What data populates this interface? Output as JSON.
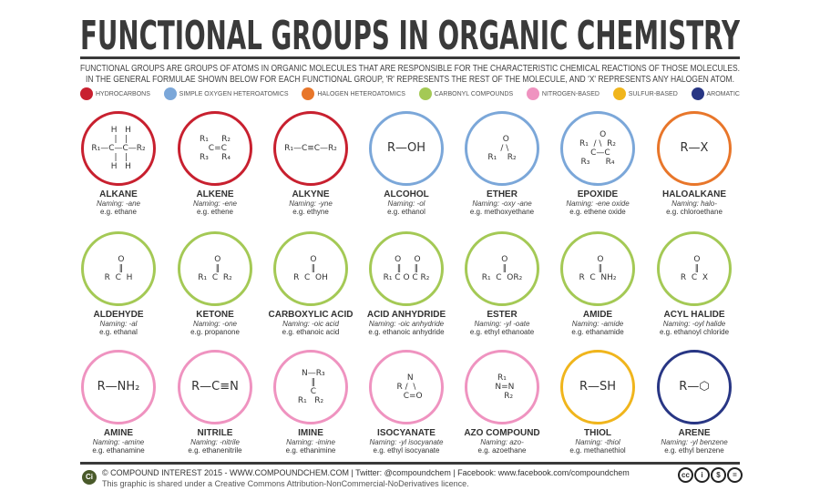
{
  "header": {
    "title": "FUNCTIONAL GROUPS IN ORGANIC CHEMISTRY",
    "subtitle_line1": "FUNCTIONAL GROUPS ARE GROUPS OF ATOMS IN ORGANIC MOLECULES THAT ARE RESPONSIBLE FOR THE CHARACTERISTIC CHEMICAL REACTIONS OF THOSE MOLECULES.",
    "subtitle_line2": "IN THE GENERAL FORMULAE SHOWN BELOW FOR EACH FUNCTIONAL GROUP, 'R' REPRESENTS THE REST OF THE MOLECULE, AND 'X' REPRESENTS ANY HALOGEN ATOM."
  },
  "legend": [
    {
      "label": "HYDROCARBONS",
      "color": "#c8202f"
    },
    {
      "label": "SIMPLE OXYGEN HETEROATOMICS",
      "color": "#7ba7d9"
    },
    {
      "label": "HALOGEN HETEROATOMICS",
      "color": "#e8762a"
    },
    {
      "label": "CARBONYL COMPOUNDS",
      "color": "#a4c955"
    },
    {
      "label": "NITROGEN-BASED",
      "color": "#ef93c0"
    },
    {
      "label": "SULFUR-BASED",
      "color": "#f0b51c"
    },
    {
      "label": "AROMATIC",
      "color": "#283684"
    }
  ],
  "groups": [
    {
      "name": "ALKANE",
      "naming": "Naming: -ane",
      "example": "e.g. ethane",
      "category": 0,
      "formula": "  H   H\n  |   |\nR₁—C—C—R₂\n  |   |\n  H   H"
    },
    {
      "name": "ALKENE",
      "naming": "Naming: -ene",
      "example": "e.g. ethene",
      "category": 0,
      "formula": "R₁     R₂\n  C=C\nR₃     R₄"
    },
    {
      "name": "ALKYNE",
      "naming": "Naming: -yne",
      "example": "e.g. ethyne",
      "category": 0,
      "formula": "R₁—C≡C—R₂"
    },
    {
      "name": "ALCOHOL",
      "naming": "Naming: -ol",
      "example": "e.g. ethanol",
      "category": 1,
      "formula": "R—OH",
      "big": true
    },
    {
      "name": "ETHER",
      "naming": "Naming: -oxy -ane",
      "example": "e.g. methoxyethane",
      "category": 1,
      "formula": "   O\n  / \\\nR₁    R₂"
    },
    {
      "name": "EPOXIDE",
      "naming": "Naming: -ene oxide",
      "example": "e.g. ethene oxide",
      "category": 1,
      "formula": "    O\nR₁  / \\  R₂\n  C—C\nR₃      R₄"
    },
    {
      "name": "HALOALKANE",
      "naming": "Naming: halo-",
      "example": "e.g. chloroethane",
      "category": 2,
      "formula": "R—X",
      "big": true
    },
    {
      "name": "ALDEHYDE",
      "naming": "Naming: -al",
      "example": "e.g. ethanal",
      "category": 3,
      "formula": "  O\n  ‖\nR  C  H"
    },
    {
      "name": "KETONE",
      "naming": "Naming: -one",
      "example": "e.g. propanone",
      "category": 3,
      "formula": "  O\n  ‖\nR₁  C  R₂"
    },
    {
      "name": "CARBOXYLIC ACID",
      "naming": "Naming: -oic acid",
      "example": "e.g. ethanoic acid",
      "category": 3,
      "formula": "  O\n  ‖\nR  C  OH"
    },
    {
      "name": "ACID ANHYDRIDE",
      "naming": "Naming: -oic anhydride",
      "example": "e.g. ethanoic anhydride",
      "category": 3,
      "formula": " O     O\n ‖     ‖\nR₁ C O C R₂"
    },
    {
      "name": "ESTER",
      "naming": "Naming: -yl -oate",
      "example": "e.g. ethyl ethanoate",
      "category": 3,
      "formula": "  O\n  ‖\nR₁  C  OR₂"
    },
    {
      "name": "AMIDE",
      "naming": "Naming: -amide",
      "example": "e.g. ethanamide",
      "category": 3,
      "formula": "  O\n  ‖\nR  C  NH₂"
    },
    {
      "name": "ACYL HALIDE",
      "naming": "Naming: -oyl halide",
      "example": "e.g. ethanoyl chloride",
      "category": 3,
      "formula": "  O\n  ‖\nR  C  X"
    },
    {
      "name": "AMINE",
      "naming": "Naming: -amine",
      "example": "e.g. ethanamine",
      "category": 4,
      "formula": "R—NH₂",
      "big": true
    },
    {
      "name": "NITRILE",
      "naming": "Naming: -nitrile",
      "example": "e.g. ethanenitrile",
      "category": 4,
      "formula": "R—C≡N",
      "big": true
    },
    {
      "name": "IMINE",
      "naming": "Naming: -imine",
      "example": "e.g. ethanimine",
      "category": 4,
      "formula": "  N—R₃\n  ‖\n  C\nR₁   R₂"
    },
    {
      "name": "ISOCYANATE",
      "naming": "Naming: -yl isocyanate",
      "example": "e.g. ethyl isocyanate",
      "category": 4,
      "formula": "   N\nR /  \\\n     C=O"
    },
    {
      "name": "AZO COMPOUND",
      "naming": "Naming: azo-",
      "example": "e.g. azoethane",
      "category": 4,
      "formula": "R₁\n  N=N\n     R₂"
    },
    {
      "name": "THIOL",
      "naming": "Naming: -thiol",
      "example": "e.g. methanethiol",
      "category": 5,
      "formula": "R—SH",
      "big": true
    },
    {
      "name": "ARENE",
      "naming": "Naming: -yl benzene",
      "example": "e.g. ethyl benzene",
      "category": 6,
      "formula": "R—⬡",
      "big": true
    }
  ],
  "footer": {
    "logo": "Ci",
    "line1": "© COMPOUND INTEREST 2015 - WWW.COMPOUNDCHEM.COM | Twitter: @compoundchem | Facebook: www.facebook.com/compoundchem",
    "line2": "This graphic is shared under a Creative Commons Attribution-NonCommercial-NoDerivatives licence.",
    "license_icons": [
      "cc",
      "by",
      "nc",
      "nd"
    ]
  }
}
